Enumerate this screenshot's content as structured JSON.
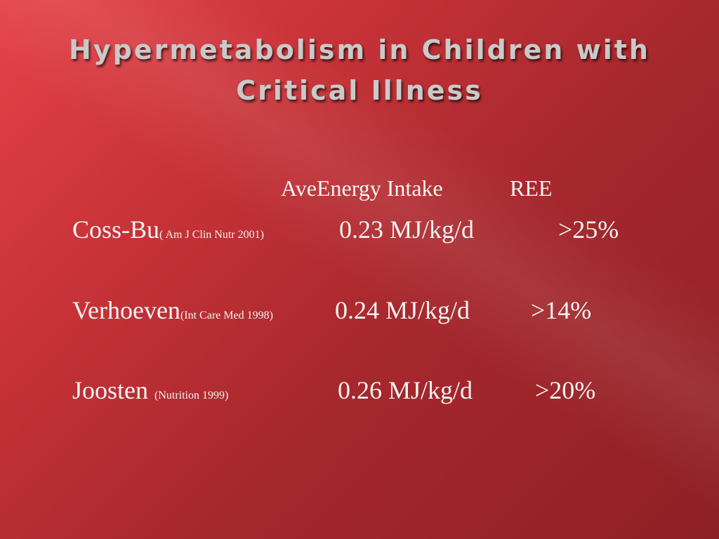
{
  "slide": {
    "title_line1": "Hypermetabolism in Children with",
    "title_line2": "Critical Illness"
  },
  "table": {
    "headers": {
      "intake": "AveEnergy Intake",
      "ree": "REE"
    },
    "rows": [
      {
        "author": "Coss-Bu",
        "citation": "( Am J Clin Nutr 2001)",
        "intake": "0.23 MJ/kg/d",
        "ree": ">25%"
      },
      {
        "author": "Verhoeven",
        "citation": "(Int Care Med 1998)",
        "intake": "0.24 MJ/kg/d",
        "ree": ">14%"
      },
      {
        "author": "Joosten",
        "citation": "(Nutrition 1999)",
        "intake": "0.26 MJ/kg/d",
        "ree": ">20%"
      }
    ]
  },
  "colors": {
    "background_light": "#e5434a",
    "background_dark": "#8e2025",
    "title_text": "#c9c9c9",
    "body_text": "#f3f3f3"
  }
}
